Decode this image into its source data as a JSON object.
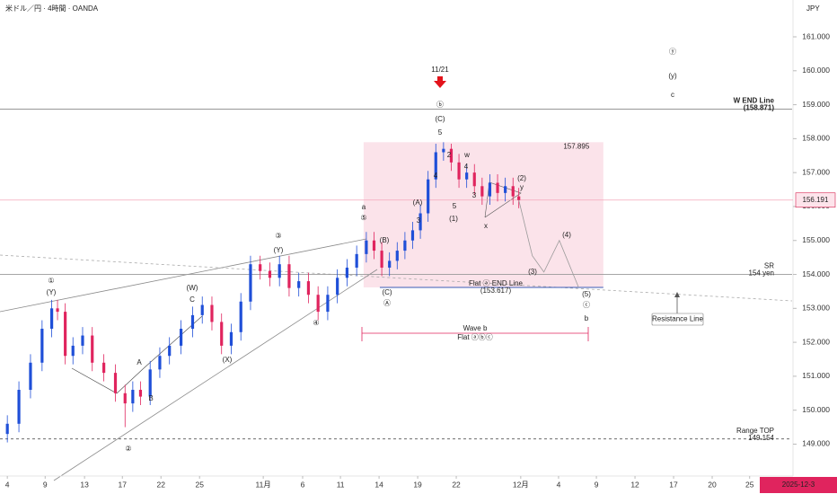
{
  "chart_data": {
    "type": "candlestick",
    "title": "米ドル／円 · 4時間 · OANDA",
    "currency": "JPY",
    "up_color": "#1f4fd8",
    "down_color": "#e0245e",
    "x": [
      0,
      0.3,
      0.6,
      0.9,
      1.15,
      1.3,
      1.5,
      1.7,
      1.95,
      2.2,
      2.5,
      2.8,
      3.05,
      3.25,
      3.45,
      3.7,
      3.95,
      4.2,
      4.5,
      4.8,
      5.05,
      5.3,
      5.55,
      5.8,
      6.05,
      6.3,
      6.55,
      6.8,
      7.05,
      7.3,
      7.55,
      7.8,
      8.05,
      8.3,
      8.55,
      8.8,
      9.05,
      9.3,
      9.5,
      9.7,
      9.9,
      10.1,
      10.3,
      10.5,
      10.7,
      10.9,
      11.1,
      11.3,
      11.5,
      11.7,
      11.9,
      12.1,
      12.3,
      12.5,
      12.7,
      12.9,
      13.1,
      13.25
    ],
    "open": [
      149.3,
      149.6,
      150.6,
      151.4,
      152.4,
      153.0,
      152.9,
      151.6,
      151.9,
      152.2,
      151.4,
      151.1,
      150.5,
      150.2,
      150.6,
      150.4,
      151.2,
      151.6,
      151.9,
      152.4,
      152.8,
      153.1,
      152.6,
      151.9,
      152.3,
      153.2,
      154.3,
      154.1,
      153.9,
      154.3,
      153.6,
      153.8,
      153.4,
      152.9,
      153.4,
      153.9,
      154.2,
      154.6,
      155.0,
      154.7,
      154.2,
      154.4,
      154.7,
      155.0,
      155.3,
      155.8,
      156.8,
      157.6,
      157.7,
      157.3,
      156.8,
      157.0,
      156.6,
      156.3,
      156.7,
      156.4,
      156.6,
      156.3
    ],
    "high": [
      149.85,
      150.85,
      151.65,
      152.65,
      153.25,
      153.25,
      153.15,
      152.15,
      152.45,
      152.45,
      151.65,
      151.35,
      150.75,
      150.85,
      150.85,
      151.45,
      151.85,
      152.15,
      152.65,
      153.05,
      153.35,
      153.35,
      152.85,
      152.55,
      153.45,
      154.55,
      154.55,
      154.35,
      154.55,
      154.55,
      154.05,
      154.05,
      153.65,
      153.65,
      154.15,
      154.45,
      154.85,
      155.25,
      155.25,
      154.95,
      154.65,
      154.95,
      155.25,
      155.55,
      156.05,
      157.05,
      157.85,
      157.895,
      157.85,
      157.55,
      157.25,
      157.25,
      156.85,
      156.95,
      156.95,
      156.85,
      156.85,
      156.55
    ],
    "low": [
      149.05,
      149.35,
      150.35,
      151.15,
      152.15,
      152.65,
      151.35,
      151.35,
      151.65,
      151.15,
      150.85,
      150.25,
      149.5,
      149.95,
      150.15,
      150.15,
      150.95,
      151.35,
      151.65,
      152.15,
      152.55,
      152.35,
      151.65,
      151.65,
      152.05,
      152.95,
      153.85,
      153.65,
      153.65,
      153.35,
      153.35,
      153.15,
      152.65,
      152.65,
      153.15,
      153.65,
      153.95,
      154.35,
      154.45,
      153.95,
      153.95,
      154.15,
      154.45,
      154.75,
      155.05,
      155.55,
      156.55,
      157.35,
      157.05,
      156.55,
      156.55,
      156.35,
      156.05,
      156.05,
      156.15,
      156.15,
      156.05,
      155.95
    ],
    "close": [
      149.6,
      150.6,
      151.4,
      152.4,
      153.0,
      152.9,
      151.6,
      151.9,
      152.2,
      151.4,
      151.1,
      150.5,
      150.2,
      150.6,
      150.4,
      151.2,
      151.6,
      151.9,
      152.4,
      152.8,
      153.1,
      152.6,
      151.9,
      152.3,
      153.2,
      154.3,
      154.1,
      153.9,
      154.3,
      153.6,
      153.8,
      153.4,
      152.9,
      153.4,
      153.9,
      154.2,
      154.6,
      155.0,
      154.7,
      154.2,
      154.4,
      154.7,
      155.0,
      155.3,
      155.8,
      156.8,
      157.6,
      157.7,
      157.3,
      156.8,
      157.0,
      156.6,
      156.3,
      156.7,
      156.4,
      156.6,
      156.3,
      156.19
    ],
    "xlim": [
      -0.19,
      20.33
    ],
    "xticks": [
      {
        "value": 0,
        "label": "4"
      },
      {
        "value": 0.98,
        "label": "9"
      },
      {
        "value": 2.0,
        "label": "13"
      },
      {
        "value": 2.98,
        "label": "17"
      },
      {
        "value": 3.98,
        "label": "22"
      },
      {
        "value": 4.98,
        "label": "25"
      },
      {
        "value": 6.63,
        "label": "11月"
      },
      {
        "value": 7.65,
        "label": "6"
      },
      {
        "value": 8.63,
        "label": "11"
      },
      {
        "value": 9.63,
        "label": "14"
      },
      {
        "value": 10.63,
        "label": "19"
      },
      {
        "value": 11.63,
        "label": "22"
      },
      {
        "value": 13.3,
        "label": "12月"
      },
      {
        "value": 14.28,
        "label": "4"
      },
      {
        "value": 15.26,
        "label": "9"
      },
      {
        "value": 16.26,
        "label": "12"
      },
      {
        "value": 17.26,
        "label": "17"
      },
      {
        "value": 18.26,
        "label": "20"
      },
      {
        "value": 19.23,
        "label": "25"
      }
    ],
    "ylim": [
      148.06,
      162.085
    ],
    "yticks": [
      {
        "value": 149,
        "label": "149.000"
      },
      {
        "value": 150,
        "label": "150.000"
      },
      {
        "value": 151,
        "label": "151.000"
      },
      {
        "value": 152,
        "label": "152.000"
      },
      {
        "value": 153,
        "label": "153.000"
      },
      {
        "value": 154,
        "label": "154.000"
      },
      {
        "value": 155,
        "label": "155.000"
      },
      {
        "value": 156,
        "label": "156.000"
      },
      {
        "value": 157,
        "label": "157.000"
      },
      {
        "value": 158,
        "label": "158.000"
      },
      {
        "value": 159,
        "label": "159.000"
      },
      {
        "value": 160,
        "label": "160.000"
      },
      {
        "value": 161,
        "label": "161.000"
      }
    ],
    "hlines": [
      {
        "value": 158.871,
        "title": "W END Line",
        "label": "(158.871)",
        "color": "#888888"
      },
      {
        "value": 154,
        "title": "SR",
        "label": "154 yen",
        "color": "#999999"
      },
      {
        "value": 149.154,
        "title": "Range TOP",
        "label": "149.154",
        "color": "#555555",
        "dashed": true
      }
    ],
    "flat_end": {
      "value": 153.617,
      "title": "Flat ⓐ END Line",
      "label": "(153.617)",
      "color": "#3b5bb5",
      "xrange": [
        9.65,
        15.44
      ]
    },
    "zone": {
      "xrange": [
        9.23,
        15.44
      ],
      "ylim": [
        153.617,
        157.895
      ],
      "color": "#fbe3ea"
    },
    "last_price": {
      "value": 156.191,
      "color": "#d6204e"
    },
    "projection": {
      "x": [
        13.25,
        13.6,
        13.9,
        14.3,
        14.8
      ],
      "values": [
        156.19,
        154.55,
        154.07,
        155.0,
        153.617
      ],
      "color": "#9a9a9a"
    },
    "event": {
      "label": "11/21",
      "color": "#e3131b"
    },
    "wave_b": {
      "title": "Wave b",
      "subtitle": "Flat ⓐⓑⓒ"
    },
    "resistance_label": "Resistance Line",
    "date_label": "2025-12-3",
    "annotations": [
      {
        "text": "①",
        "color": "#111"
      },
      {
        "text": "(Y)",
        "color": "#111"
      },
      {
        "text": "②",
        "color": "#111"
      },
      {
        "text": "③",
        "color": "#111"
      },
      {
        "text": "(Y)",
        "color": "#111"
      },
      {
        "text": "(W)",
        "color": "#111"
      },
      {
        "text": "C",
        "color": "#111"
      },
      {
        "text": "(X)",
        "color": "#111"
      },
      {
        "text": "A",
        "color": "#111"
      },
      {
        "text": "B",
        "color": "#111"
      },
      {
        "text": "④",
        "color": "#111"
      },
      {
        "text": "⑤",
        "color": "#111"
      },
      {
        "text": "a",
        "color": "#2c55c8"
      },
      {
        "text": "(B)",
        "color": "#111"
      },
      {
        "text": "(A)",
        "color": "#111"
      },
      {
        "text": "(C)",
        "color": "#111"
      },
      {
        "text": "Ⓐ",
        "color": "#e0245e"
      },
      {
        "text": "ⓑ",
        "color": "#e0245e"
      },
      {
        "text": "(C)",
        "color": "#111"
      },
      {
        "text": "5",
        "color": "#111"
      },
      {
        "text": "w",
        "color": "#e0245e"
      },
      {
        "text": "x",
        "color": "#e0245e"
      },
      {
        "text": "y",
        "color": "#e0245e"
      },
      {
        "text": "(1)",
        "color": "#111"
      },
      {
        "text": "(2)",
        "color": "#111"
      },
      {
        "text": "(3)",
        "color": "#111"
      },
      {
        "text": "(4)",
        "color": "#111"
      },
      {
        "text": "(5)",
        "color": "#111"
      },
      {
        "text": "ⓒ",
        "color": "#e0245e"
      },
      {
        "text": "b",
        "color": "#2c55c8"
      },
      {
        "text": "ⓨ",
        "color": "#e0245e"
      },
      {
        "text": "(y)",
        "color": "#2c55c8"
      },
      {
        "text": "c",
        "color": "#2c55c8"
      },
      {
        "text": "3",
        "color": "#111"
      },
      {
        "text": "4",
        "color": "#111"
      },
      {
        "text": "2",
        "color": "#111"
      },
      {
        "text": "4",
        "color": "#111"
      },
      {
        "text": "3",
        "color": "#111"
      },
      {
        "text": "5",
        "color": "#111"
      }
    ]
  }
}
